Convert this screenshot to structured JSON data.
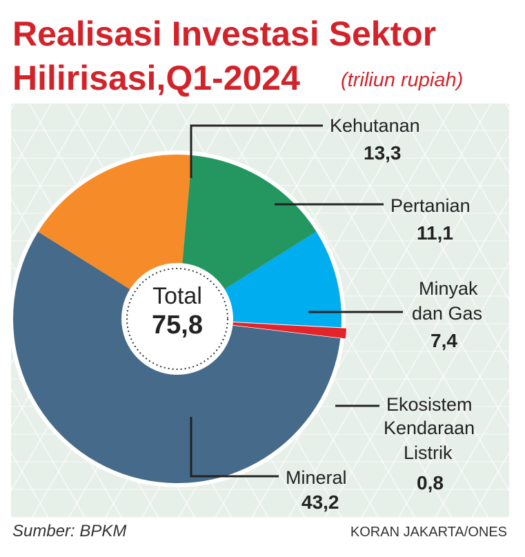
{
  "title_line1": "Realisasi Investasi Sektor",
  "title_line2": "Hilirisasi,Q1-2024",
  "unit": "(triliun rupiah)",
  "center_label": "Total",
  "center_value": "75,8",
  "source": "Sumber: BPKM",
  "credit": "KORAN JAKARTA/ONES",
  "chart_data": {
    "type": "pie",
    "title": "Realisasi Investasi Sektor Hilirisasi,Q1-2024",
    "unit": "triliun rupiah",
    "total": 75.8,
    "slices": [
      {
        "label": "Kehutanan",
        "value": 13.3,
        "value_text": "13,3",
        "color": "#f68b29"
      },
      {
        "label": "Pertanian",
        "value": 11.1,
        "value_text": "11,1",
        "color": "#23975f"
      },
      {
        "label": "Minyak dan Gas",
        "label_lines": [
          "Minyak",
          "dan Gas"
        ],
        "value": 7.4,
        "value_text": "7,4",
        "color": "#00adef"
      },
      {
        "label": "Ekosistem Kendaraan Listrik",
        "label_lines": [
          "Ekosistem",
          "Kendaraan",
          "Listrik"
        ],
        "value": 0.8,
        "value_text": "0,8",
        "color": "#e4242b"
      },
      {
        "label": "Mineral",
        "value": 43.2,
        "value_text": "43,2",
        "color": "#466a89"
      }
    ]
  }
}
